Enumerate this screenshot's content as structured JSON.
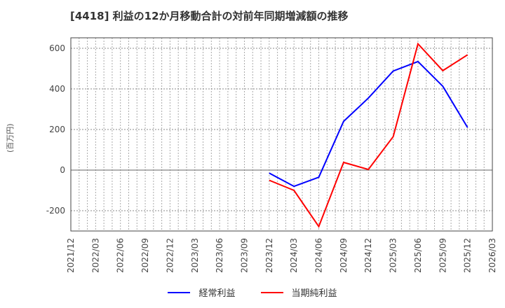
{
  "chart_data": {
    "type": "line",
    "title": "[4418]  利益の12か月移動合計の対前年同期増減額の推移",
    "xlabel": "",
    "ylabel": "(百万円)",
    "ylim": [
      -300,
      650
    ],
    "yticks": [
      -200,
      0,
      200,
      400,
      600
    ],
    "grid": true,
    "legend_position": "bottom",
    "x_ticks": [
      "2021/12",
      "2022/03",
      "2022/06",
      "2022/09",
      "2022/12",
      "2023/03",
      "2023/06",
      "2023/09",
      "2023/12",
      "2024/03",
      "2024/06",
      "2024/09",
      "2024/12",
      "2025/03",
      "2025/06",
      "2025/09",
      "2025/12",
      "2026/03"
    ],
    "x": [
      "2023/12",
      "2024/03",
      "2024/06",
      "2024/09",
      "2024/12",
      "2025/03",
      "2025/06",
      "2025/09",
      "2025/12"
    ],
    "series": [
      {
        "name": "経常利益",
        "color": "#0000ff",
        "values": [
          -15,
          -80,
          -35,
          240,
          355,
          488,
          535,
          413,
          210
        ]
      },
      {
        "name": "当期純利益",
        "color": "#ff0000",
        "values": [
          -50,
          -100,
          -278,
          38,
          3,
          165,
          622,
          490,
          568
        ]
      }
    ]
  }
}
